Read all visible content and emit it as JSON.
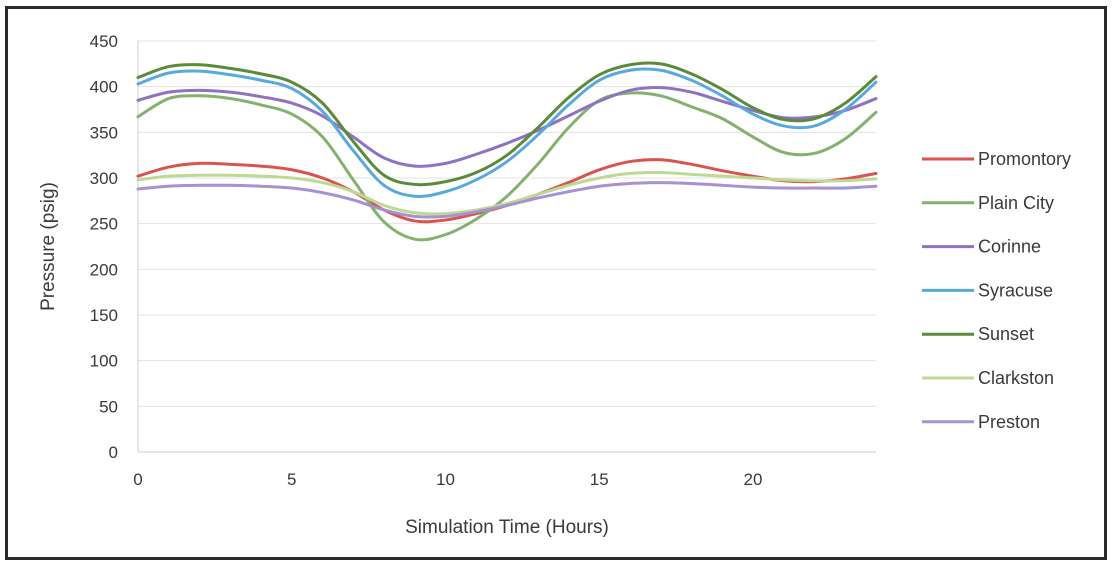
{
  "chart_data": {
    "type": "line",
    "title": "",
    "xlabel": "Simulation Time (Hours)",
    "ylabel": "Pressure (psig)",
    "xlim": [
      0,
      24
    ],
    "ylim": [
      0,
      450
    ],
    "xticks": [
      0,
      5,
      10,
      15,
      20
    ],
    "yticks": [
      0,
      50,
      100,
      150,
      200,
      250,
      300,
      350,
      400,
      450
    ],
    "grid": true,
    "legend_position": "right",
    "x": [
      0,
      1,
      2,
      3,
      4,
      5,
      6,
      7,
      8,
      9,
      10,
      11,
      12,
      13,
      14,
      15,
      16,
      17,
      18,
      19,
      20,
      21,
      22,
      23,
      24
    ],
    "series": [
      {
        "name": "Promontory",
        "color": "#d9534f",
        "values": [
          302,
          312,
          316,
          315,
          313,
          309,
          300,
          285,
          265,
          253,
          254,
          261,
          270,
          282,
          295,
          309,
          318,
          320,
          315,
          308,
          302,
          297,
          296,
          299,
          305
        ]
      },
      {
        "name": "Plain City",
        "color": "#84b26e",
        "values": [
          367,
          387,
          390,
          387,
          380,
          370,
          345,
          298,
          252,
          233,
          238,
          255,
          280,
          315,
          355,
          385,
          393,
          390,
          378,
          365,
          345,
          328,
          327,
          343,
          372
        ]
      },
      {
        "name": "Corinne",
        "color": "#8f72c2",
        "values": [
          385,
          394,
          396,
          394,
          389,
          382,
          368,
          345,
          322,
          313,
          316,
          326,
          338,
          352,
          368,
          384,
          396,
          399,
          394,
          384,
          374,
          366,
          367,
          374,
          387
        ]
      },
      {
        "name": "Syracuse",
        "color": "#5aa9db",
        "values": [
          403,
          415,
          417,
          413,
          407,
          398,
          373,
          330,
          292,
          280,
          285,
          298,
          318,
          347,
          380,
          407,
          418,
          418,
          407,
          390,
          370,
          357,
          357,
          375,
          405
        ]
      },
      {
        "name": "Sunset",
        "color": "#5c8a3b",
        "values": [
          410,
          422,
          424,
          420,
          414,
          405,
          382,
          340,
          303,
          293,
          296,
          306,
          325,
          355,
          388,
          413,
          424,
          425,
          414,
          397,
          377,
          364,
          365,
          382,
          411
        ]
      },
      {
        "name": "Clarkston",
        "color": "#bed994",
        "values": [
          298,
          302,
          303,
          303,
          302,
          300,
          295,
          285,
          270,
          262,
          261,
          265,
          272,
          282,
          292,
          300,
          305,
          306,
          304,
          302,
          300,
          298,
          297,
          297,
          299
        ]
      },
      {
        "name": "Preston",
        "color": "#a692d2",
        "values": [
          288,
          291,
          292,
          292,
          291,
          289,
          284,
          276,
          265,
          258,
          258,
          263,
          270,
          278,
          285,
          291,
          294,
          295,
          294,
          292,
          290,
          289,
          289,
          289,
          291
        ]
      }
    ]
  }
}
